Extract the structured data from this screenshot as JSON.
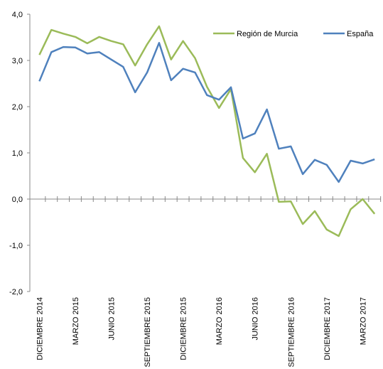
{
  "chart_data": {
    "type": "line",
    "categories": [
      "DICIEMBRE 2014",
      null,
      null,
      "MARZO 2015",
      null,
      null,
      "JUNIO 2015",
      null,
      null,
      "SEPTIEMBRE 2015",
      null,
      null,
      "DICIEMBRE 2015",
      null,
      null,
      "MARZO 2016",
      null,
      null,
      "JUNIO 2016",
      null,
      null,
      "SEPTIEMBRE 2016",
      null,
      null,
      "DICIEMBRE 2017",
      null,
      null,
      "MARZO 2017",
      null
    ],
    "series": [
      {
        "name": "Región de Murcia",
        "color": "#9bbb59",
        "values": [
          3.12,
          3.66,
          3.58,
          3.51,
          3.37,
          3.51,
          3.42,
          3.35,
          2.89,
          3.35,
          3.74,
          3.02,
          3.42,
          3.05,
          2.43,
          1.97,
          2.38,
          0.89,
          0.58,
          0.98,
          -0.06,
          -0.05,
          -0.54,
          -0.26,
          -0.66,
          -0.8,
          -0.22,
          0.0,
          -0.32
        ]
      },
      {
        "name": "España",
        "color": "#4f81bd",
        "values": [
          2.55,
          3.18,
          3.29,
          3.28,
          3.15,
          3.18,
          3.02,
          2.86,
          2.31,
          2.74,
          3.38,
          2.57,
          2.82,
          2.74,
          2.25,
          2.15,
          2.42,
          1.31,
          1.42,
          1.94,
          1.09,
          1.14,
          0.54,
          0.85,
          0.74,
          0.37,
          0.83,
          0.77,
          0.86
        ]
      }
    ],
    "ylim": [
      -2,
      4
    ],
    "yticks": [
      {
        "value": -2,
        "label": "-2,0"
      },
      {
        "value": -1,
        "label": "-1,0"
      },
      {
        "value": 0,
        "label": "0,0"
      },
      {
        "value": 1,
        "label": "1,0"
      },
      {
        "value": 2,
        "label": "2,0"
      },
      {
        "value": 3,
        "label": "3,0"
      },
      {
        "value": 4,
        "label": "4,0"
      }
    ],
    "legend": "upper right"
  }
}
